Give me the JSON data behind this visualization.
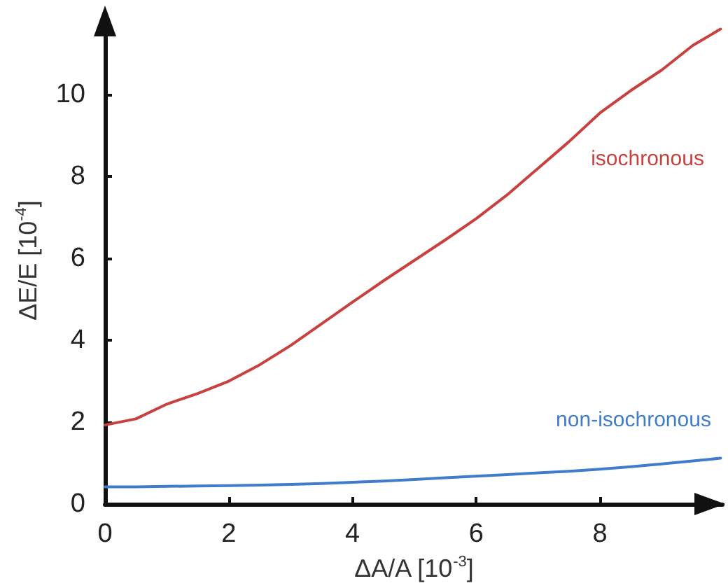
{
  "chart_data": {
    "type": "line",
    "xlabel": "ΔA/A [10$^{-3}$]",
    "ylabel": "ΔE/E [10$^{-4}$]",
    "x": [
      0,
      0.5,
      1,
      1.5,
      2,
      2.5,
      3,
      3.5,
      4,
      4.5,
      5,
      5.5,
      6,
      6.5,
      7,
      7.5,
      8,
      8.5,
      9,
      9.5,
      9.95
    ],
    "series": [
      {
        "name": "isochronous",
        "color": "#c8413f",
        "values": [
          1.93,
          2.08,
          2.44,
          2.7,
          3.0,
          3.4,
          3.87,
          4.4,
          4.93,
          5.45,
          5.95,
          6.45,
          6.97,
          7.55,
          8.2,
          8.85,
          9.55,
          10.1,
          10.6,
          11.2,
          11.6
        ]
      },
      {
        "name": "non-isochronous",
        "color": "#3f7ccc",
        "values": [
          0.42,
          0.42,
          0.43,
          0.44,
          0.45,
          0.46,
          0.48,
          0.5,
          0.53,
          0.56,
          0.6,
          0.64,
          0.68,
          0.72,
          0.76,
          0.8,
          0.85,
          0.91,
          0.98,
          1.05,
          1.12
        ]
      }
    ],
    "xlim": [
      0,
      9.98
    ],
    "xticks": [
      0,
      2,
      4,
      6,
      8
    ],
    "ylim": [
      0,
      11.9
    ],
    "yticks": [
      0,
      2,
      4,
      6,
      8,
      10
    ],
    "grid": false,
    "legend": false,
    "marker": "none",
    "line_style": "solid"
  }
}
